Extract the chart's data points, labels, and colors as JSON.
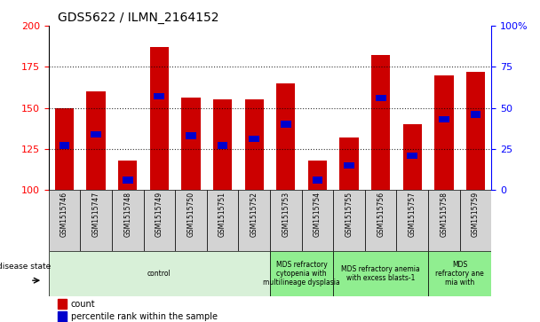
{
  "title": "GDS5622 / ILMN_2164152",
  "samples": [
    "GSM1515746",
    "GSM1515747",
    "GSM1515748",
    "GSM1515749",
    "GSM1515750",
    "GSM1515751",
    "GSM1515752",
    "GSM1515753",
    "GSM1515754",
    "GSM1515755",
    "GSM1515756",
    "GSM1515757",
    "GSM1515758",
    "GSM1515759"
  ],
  "bar_values": [
    150,
    160,
    118,
    187,
    156,
    155,
    155,
    165,
    118,
    132,
    182,
    140,
    170,
    172
  ],
  "percentile_values": [
    127,
    134,
    106,
    157,
    133,
    127,
    131,
    140,
    106,
    115,
    156,
    121,
    143,
    146
  ],
  "ymin": 100,
  "ymax": 200,
  "yticks_left": [
    100,
    125,
    150,
    175,
    200
  ],
  "bar_color": "#cc0000",
  "percentile_color": "#0000cc",
  "bar_width": 0.6,
  "disease_groups": [
    {
      "label": "control",
      "start": 0,
      "end": 6,
      "color": "#d8f0d8"
    },
    {
      "label": "MDS refractory\ncytopenia with\nmultilineage dysplasia",
      "start": 7,
      "end": 8,
      "color": "#90ee90"
    },
    {
      "label": "MDS refractory anemia\nwith excess blasts-1",
      "start": 9,
      "end": 11,
      "color": "#90ee90"
    },
    {
      "label": "MDS\nrefractory ane\nmia with",
      "start": 12,
      "end": 13,
      "color": "#90ee90"
    }
  ],
  "legend_count_label": "count",
  "legend_percentile_label": "percentile rank within the sample",
  "disease_state_label": "disease state"
}
